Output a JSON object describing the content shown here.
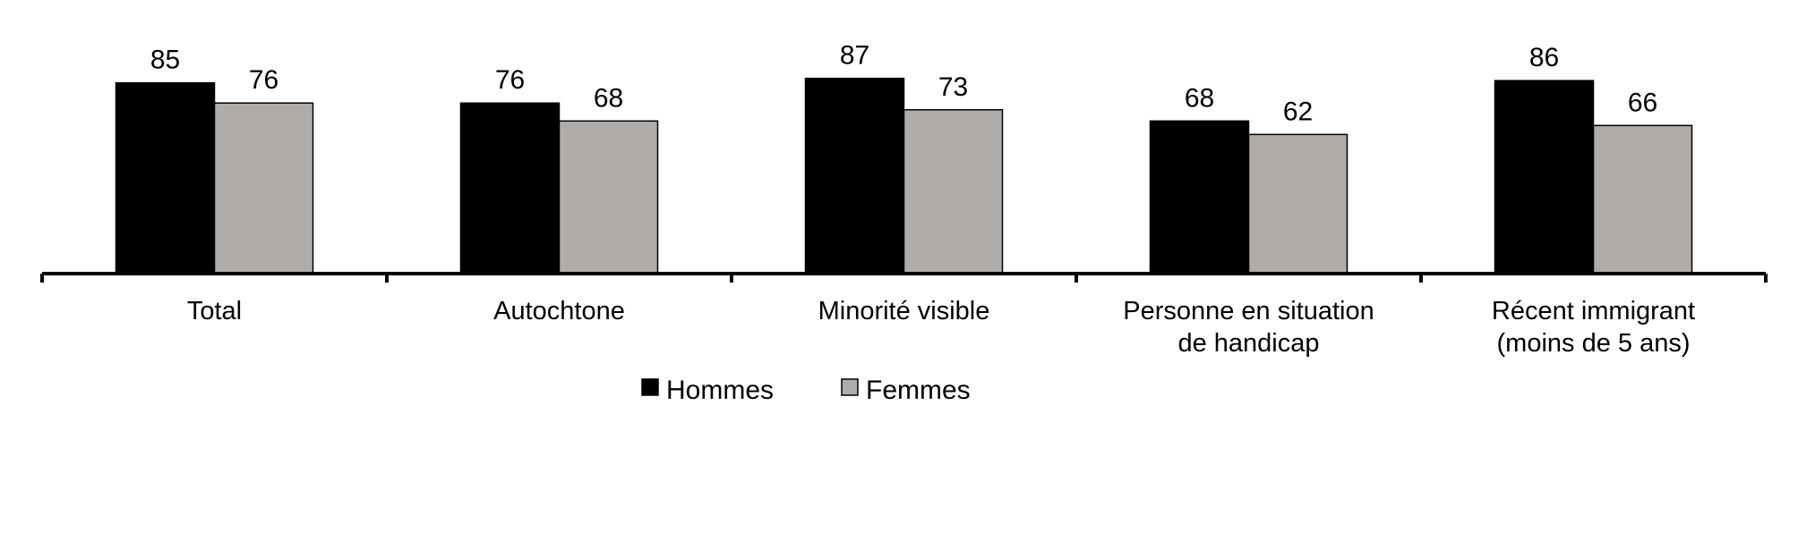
{
  "chart_data": {
    "type": "bar",
    "categories": [
      [
        "Total"
      ],
      [
        "Autochtone"
      ],
      [
        "Minorité visible"
      ],
      [
        "Personne en situation",
        "de handicap"
      ],
      [
        "Récent immigrant",
        "(moins de 5 ans)"
      ]
    ],
    "series": [
      {
        "name": "Hommes",
        "color": "#000000",
        "values": [
          85,
          76,
          87,
          68,
          86
        ]
      },
      {
        "name": "Femmes",
        "color": "#b0acaa",
        "values": [
          76,
          68,
          73,
          62,
          66
        ]
      }
    ],
    "ylim": [
      0,
      100
    ],
    "grid": false,
    "legend_position": "bottom-center",
    "data_labels": true
  }
}
